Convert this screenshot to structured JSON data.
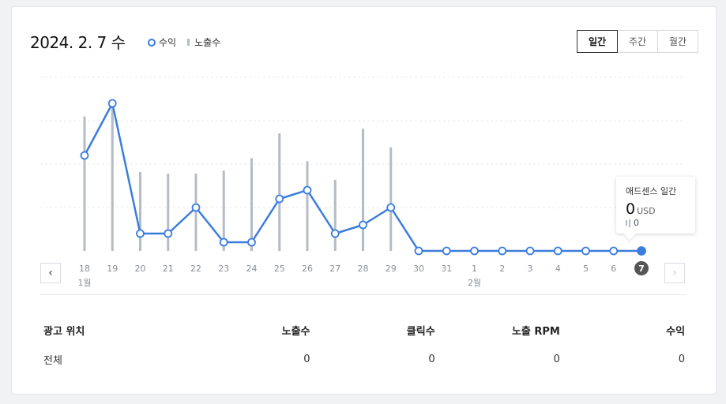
{
  "header": {
    "date": "2024. 2. 7 수",
    "legend_revenue": "수익",
    "legend_impressions": "노출수"
  },
  "tabs": [
    {
      "label": "일간",
      "active": true
    },
    {
      "label": "주간",
      "active": false
    },
    {
      "label": "월간",
      "active": false
    }
  ],
  "nav": {
    "prev": "‹",
    "next": "›"
  },
  "colors": {
    "revenue_line": "#3b7ddd",
    "impression_bar": "#b4bcc6",
    "selected_day": "#555555"
  },
  "chart_data": {
    "type": "line",
    "title": "",
    "xlabel": "",
    "ylabel": "",
    "grid": true,
    "categories": [
      "18",
      "19",
      "20",
      "21",
      "22",
      "23",
      "24",
      "25",
      "26",
      "27",
      "28",
      "29",
      "30",
      "31",
      "1",
      "2",
      "3",
      "4",
      "5",
      "6",
      "7"
    ],
    "month_labels": [
      {
        "index": 0,
        "label": "1월"
      },
      {
        "index": 14,
        "label": "2월"
      }
    ],
    "selected_index": 20,
    "series": [
      {
        "name": "수익",
        "kind": "line",
        "values": [
          0.55,
          0.85,
          0.1,
          0.1,
          0.25,
          0.05,
          0.05,
          0.3,
          0.35,
          0.1,
          0.15,
          0.25,
          0,
          0,
          0,
          0,
          0,
          0,
          0,
          0,
          0
        ]
      },
      {
        "name": "노출수",
        "kind": "bar",
        "values": [
          0.87,
          0.95,
          0.51,
          0.5,
          0.5,
          0.52,
          0.6,
          0.76,
          0.58,
          0.46,
          0.79,
          0.67,
          0,
          0,
          0,
          0,
          0,
          0,
          0,
          0,
          0
        ]
      }
    ],
    "ylim": [
      0,
      1
    ]
  },
  "tooltip": {
    "title": "애드센스 일간",
    "value": "0",
    "unit": "USD",
    "impressions": "0"
  },
  "table": {
    "headers": [
      "광고 위치",
      "노출수",
      "클릭수",
      "노출 RPM",
      "수익"
    ],
    "rows": [
      [
        "전체",
        "0",
        "0",
        "0",
        "0"
      ]
    ]
  }
}
